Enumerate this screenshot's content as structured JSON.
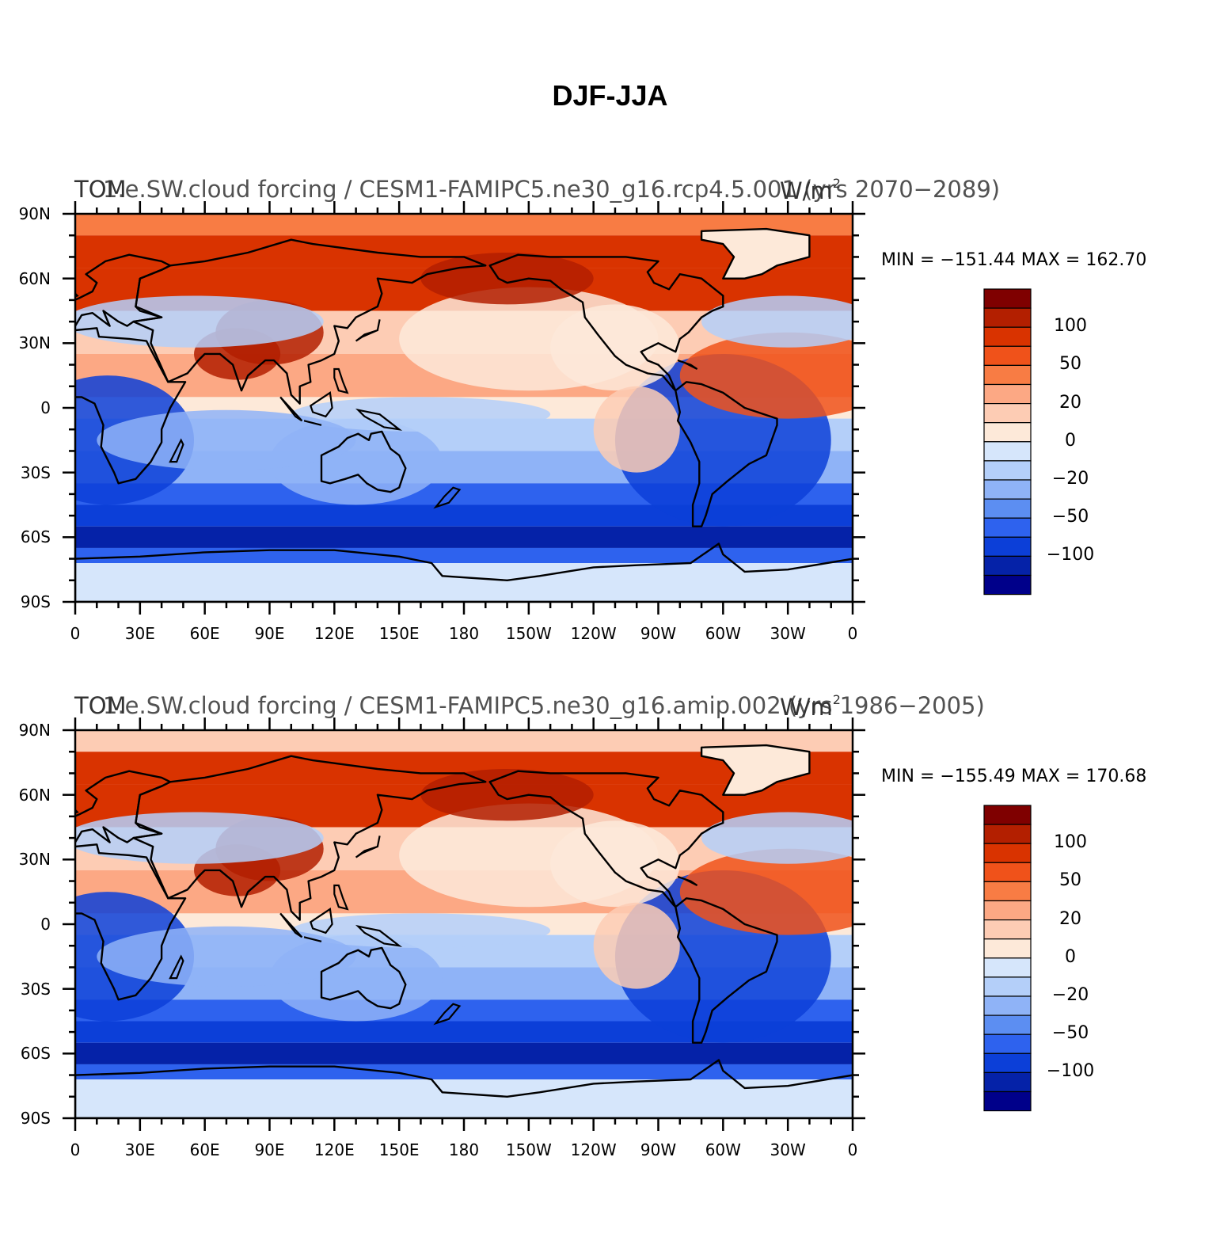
{
  "figure": {
    "title": "DJF-JJA",
    "lat_ticks": [
      "90N",
      "60N",
      "30N",
      "0",
      "30S",
      "60S",
      "90S"
    ],
    "lon_ticks": [
      "0",
      "30E",
      "60E",
      "90E",
      "120E",
      "150E",
      "180",
      "150W",
      "120W",
      "90W",
      "60W",
      "30W",
      "0"
    ],
    "colorbar": {
      "colors": [
        "#7f0000",
        "#b31f00",
        "#d93300",
        "#f0521a",
        "#f87c44",
        "#fca884",
        "#fdccb4",
        "#fde9d9",
        "#d6e6fb",
        "#b4cff9",
        "#8fb3f7",
        "#5c8ef2",
        "#2e62ee",
        "#0c3fd8",
        "#0522a8",
        "#00008a"
      ],
      "labels": [
        "100",
        "50",
        "20",
        "0",
        "−20",
        "−50",
        "−100"
      ]
    }
  },
  "panels": [
    {
      "title_left": "TOM",
      "title_center": "1.e.SW.cloud forcing / CESM1-FAMIPC5.ne30_g16.rcp4.5.001 (yrs 2070−2089)",
      "title_right": "W/m",
      "title_right_sup": "2",
      "min_label": "MIN",
      "min_value": "−151.44",
      "max_label": "MAX",
      "max_value": "162.70",
      "equals": "="
    },
    {
      "title_left": "TOM",
      "title_center": "1.e.SW.cloud forcing / CESM1-FAMIPC5.ne30_g16.amip.002 (yrs 1986−2005)",
      "title_right": "W/m",
      "title_right_sup": "2",
      "min_label": "MIN",
      "min_value": "−155.49",
      "max_label": "MAX",
      "max_value": "170.68",
      "equals": "="
    }
  ]
}
